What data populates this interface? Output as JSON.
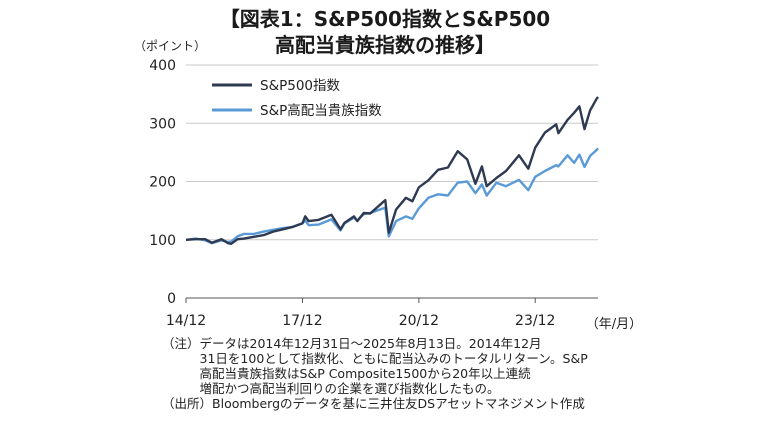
{
  "title": {
    "line1": "【図表1：S&P500指数とS&P500",
    "line2": "高配当貴族指数の推移】"
  },
  "chart_data": {
    "type": "line",
    "title": "【図表1：S&P500指数とS&P500高配当貴族指数の推移】",
    "ylabel": "（ポイント）",
    "xlabel": "（年/月）",
    "ylim": [
      0,
      400
    ],
    "yticks": [
      0,
      100,
      200,
      300,
      400
    ],
    "xlim": [
      "2014-12-31",
      "2025-08-13"
    ],
    "xticks": [
      {
        "date": "2014-12-31",
        "label": "14/12"
      },
      {
        "date": "2017-12-31",
        "label": "17/12"
      },
      {
        "date": "2020-12-31",
        "label": "20/12"
      },
      {
        "date": "2023-12-31",
        "label": "23/12"
      }
    ],
    "grid": "horizontal",
    "legend_position": "top-left",
    "series": [
      {
        "name": "S&P500指数",
        "color": "#2e3a52",
        "points": [
          [
            "2014-12-31",
            100
          ],
          [
            "2015-03-31",
            101
          ],
          [
            "2015-06-30",
            101
          ],
          [
            "2015-08-31",
            95
          ],
          [
            "2015-11-30",
            101
          ],
          [
            "2016-01-31",
            94
          ],
          [
            "2016-02-29",
            93
          ],
          [
            "2016-04-30",
            101
          ],
          [
            "2016-06-30",
            102
          ],
          [
            "2016-09-30",
            105
          ],
          [
            "2016-12-31",
            108
          ],
          [
            "2017-03-31",
            114
          ],
          [
            "2017-06-30",
            118
          ],
          [
            "2017-09-30",
            122
          ],
          [
            "2017-12-31",
            128
          ],
          [
            "2018-01-26",
            140
          ],
          [
            "2018-02-28",
            132
          ],
          [
            "2018-05-31",
            134
          ],
          [
            "2018-09-30",
            143
          ],
          [
            "2018-12-24",
            118
          ],
          [
            "2019-01-31",
            129
          ],
          [
            "2019-04-30",
            140
          ],
          [
            "2019-05-31",
            132
          ],
          [
            "2019-07-31",
            146
          ],
          [
            "2019-09-30",
            145
          ],
          [
            "2019-12-31",
            160
          ],
          [
            "2020-02-19",
            168
          ],
          [
            "2020-03-23",
            112
          ],
          [
            "2020-05-31",
            152
          ],
          [
            "2020-08-31",
            172
          ],
          [
            "2020-10-31",
            166
          ],
          [
            "2020-12-31",
            190
          ],
          [
            "2021-03-31",
            202
          ],
          [
            "2021-06-30",
            220
          ],
          [
            "2021-09-30",
            224
          ],
          [
            "2021-12-31",
            252
          ],
          [
            "2022-03-31",
            238
          ],
          [
            "2022-06-16",
            196
          ],
          [
            "2022-08-16",
            226
          ],
          [
            "2022-09-30",
            192
          ],
          [
            "2022-12-31",
            206
          ],
          [
            "2023-03-31",
            218
          ],
          [
            "2023-07-31",
            245
          ],
          [
            "2023-10-27",
            222
          ],
          [
            "2023-12-31",
            258
          ],
          [
            "2024-03-31",
            284
          ],
          [
            "2024-07-16",
            298
          ],
          [
            "2024-08-05",
            283
          ],
          [
            "2024-10-31",
            306
          ],
          [
            "2024-12-31",
            318
          ],
          [
            "2025-02-19",
            329
          ],
          [
            "2025-04-08",
            290
          ],
          [
            "2025-05-31",
            322
          ],
          [
            "2025-07-31",
            342
          ],
          [
            "2025-08-13",
            345
          ]
        ]
      },
      {
        "name": "S&P高配当貴族指数",
        "color": "#5a9ad6",
        "points": [
          [
            "2014-12-31",
            100
          ],
          [
            "2015-03-31",
            102
          ],
          [
            "2015-06-30",
            99
          ],
          [
            "2015-08-31",
            94
          ],
          [
            "2015-11-30",
            99
          ],
          [
            "2016-01-31",
            96
          ],
          [
            "2016-02-29",
            97
          ],
          [
            "2016-04-30",
            106
          ],
          [
            "2016-06-30",
            110
          ],
          [
            "2016-09-30",
            110
          ],
          [
            "2016-12-31",
            114
          ],
          [
            "2017-03-31",
            117
          ],
          [
            "2017-06-30",
            120
          ],
          [
            "2017-09-30",
            122
          ],
          [
            "2017-12-31",
            128
          ],
          [
            "2018-01-26",
            133
          ],
          [
            "2018-02-28",
            125
          ],
          [
            "2018-05-31",
            126
          ],
          [
            "2018-09-30",
            135
          ],
          [
            "2018-12-24",
            116
          ],
          [
            "2019-01-31",
            128
          ],
          [
            "2019-04-30",
            138
          ],
          [
            "2019-05-31",
            133
          ],
          [
            "2019-07-31",
            144
          ],
          [
            "2019-09-30",
            146
          ],
          [
            "2019-12-31",
            152
          ],
          [
            "2020-02-19",
            155
          ],
          [
            "2020-03-23",
            106
          ],
          [
            "2020-05-31",
            132
          ],
          [
            "2020-08-31",
            140
          ],
          [
            "2020-10-31",
            136
          ],
          [
            "2020-12-31",
            154
          ],
          [
            "2021-03-31",
            172
          ],
          [
            "2021-06-30",
            178
          ],
          [
            "2021-09-30",
            176
          ],
          [
            "2021-12-31",
            198
          ],
          [
            "2022-03-31",
            200
          ],
          [
            "2022-06-16",
            180
          ],
          [
            "2022-08-16",
            195
          ],
          [
            "2022-09-30",
            176
          ],
          [
            "2022-12-31",
            198
          ],
          [
            "2023-03-31",
            192
          ],
          [
            "2023-07-31",
            203
          ],
          [
            "2023-10-27",
            185
          ],
          [
            "2023-12-31",
            208
          ],
          [
            "2024-03-31",
            218
          ],
          [
            "2024-07-16",
            228
          ],
          [
            "2024-08-05",
            226
          ],
          [
            "2024-10-31",
            245
          ],
          [
            "2024-12-31",
            232
          ],
          [
            "2025-02-19",
            246
          ],
          [
            "2025-04-08",
            225
          ],
          [
            "2025-05-31",
            244
          ],
          [
            "2025-07-31",
            254
          ],
          [
            "2025-08-13",
            257
          ]
        ]
      }
    ]
  },
  "notes": [
    {
      "tag": "（注）",
      "text": "データは2014年12月31日～2025年8月13日。2014年12月\n31日を100として指数化、ともに配当込みのトータルリターン。S&P\n高配当貴族指数はS&P Composite1500から20年以上連続\n増配かつ高配当利回りの企業を選び指数化したもの。"
    },
    {
      "tag": "（出所）",
      "text": "Bloombergのデータを基に三井住友DSアセットマネジメント作成"
    }
  ]
}
